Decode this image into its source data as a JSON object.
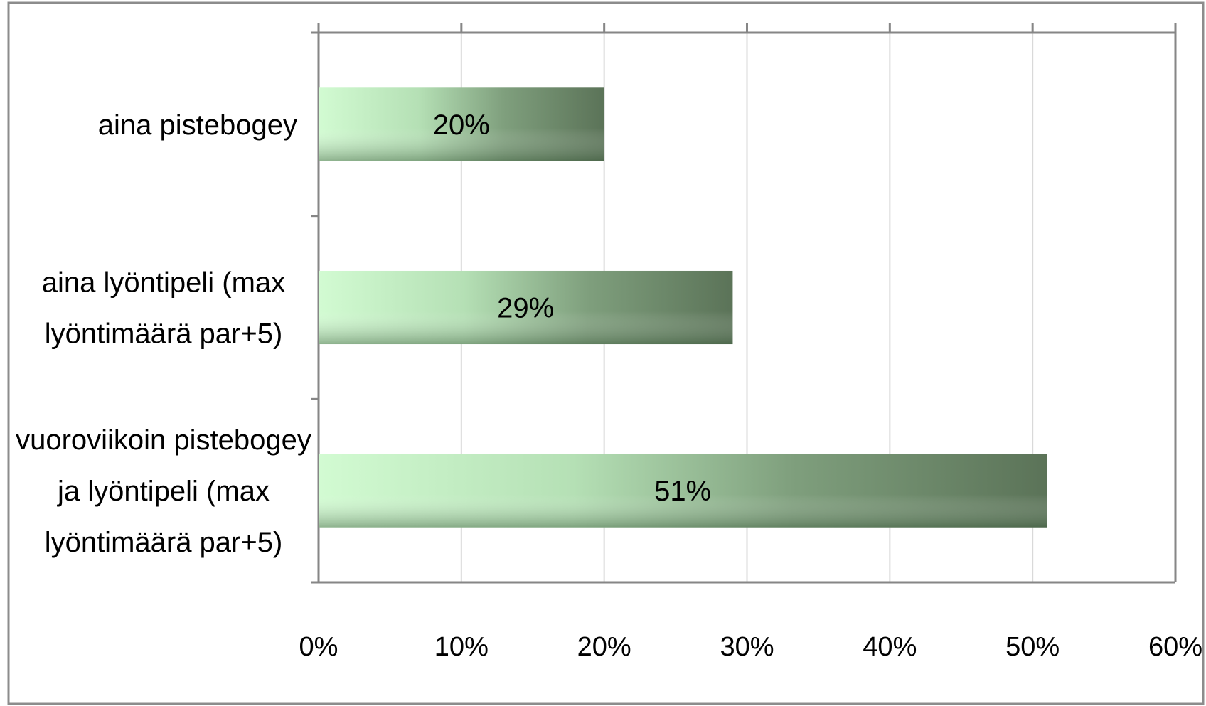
{
  "chart_data": {
    "type": "bar",
    "orientation": "horizontal",
    "title": "",
    "xlabel": "",
    "ylabel": "",
    "categories": [
      [
        "aina pistebogey"
      ],
      [
        "aina lyöntipeli (max",
        "lyöntimäärä par+5)"
      ],
      [
        "vuoroviikoin pistebogey",
        "ja lyöntipeli (max",
        "lyöntimäärä par+5)"
      ]
    ],
    "values": [
      20,
      29,
      51
    ],
    "data_labels": [
      "20%",
      "29%",
      "51%"
    ],
    "xlim": [
      0,
      60
    ],
    "xticks": [
      0,
      10,
      20,
      30,
      40,
      50,
      60
    ],
    "xtick_labels": [
      "0%",
      "10%",
      "20%",
      "30%",
      "40%",
      "50%",
      "60%"
    ],
    "grid": true,
    "legend": "none",
    "x_axis_position": "top-line, labels-bottom",
    "colors": {
      "bar_light": "#c8f5c8",
      "bar_mid": "#8fb08f",
      "bar_dark": "#5e7659",
      "grid": "#d9d9d9",
      "axis": "#868686",
      "frame": "#8c8c8c"
    }
  }
}
